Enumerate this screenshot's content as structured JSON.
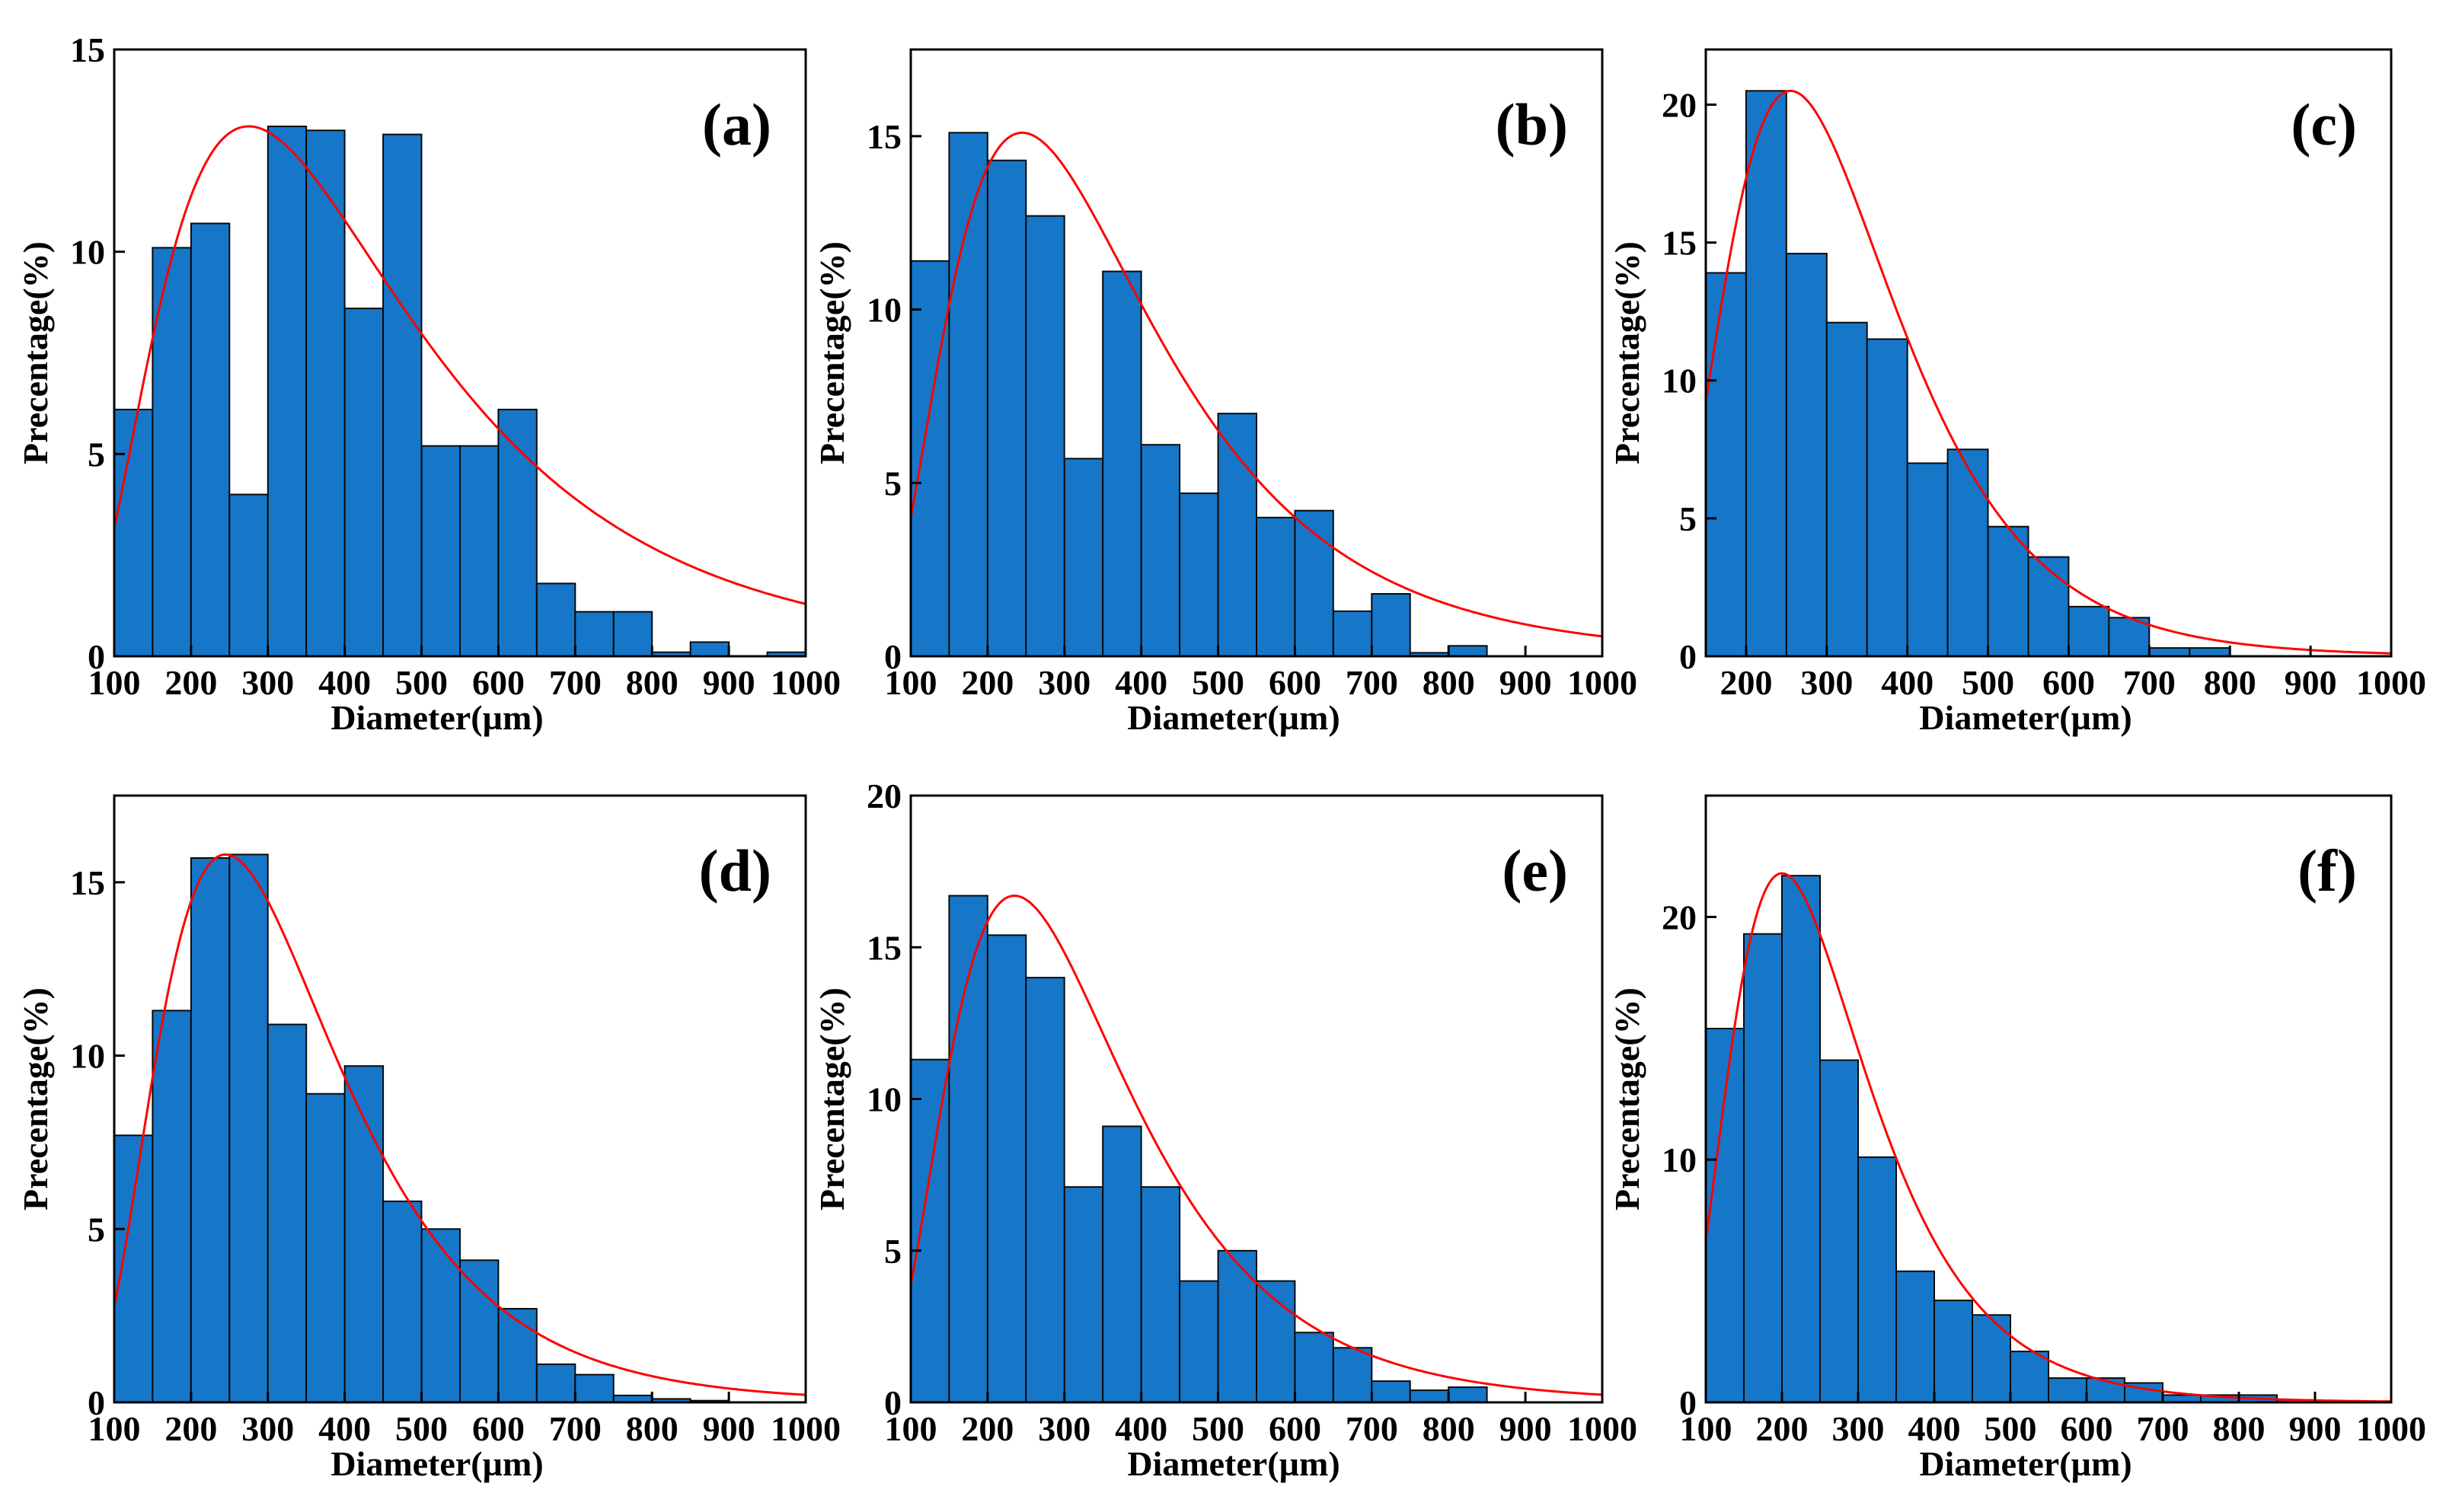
{
  "colors": {
    "bar_fill": "#1677c9",
    "bar_stroke": "#0a0a0a",
    "fit_line": "#ff0000",
    "axis": "#000000"
  },
  "chart_data": [
    {
      "type": "bar",
      "panel_label": "(a)",
      "xlabel": "Diameter(µm)",
      "ylabel": "Precentage(%)",
      "xlim": [
        100,
        1000
      ],
      "ylim": [
        0,
        15
      ],
      "xticks": [
        100,
        200,
        300,
        400,
        500,
        600,
        700,
        800,
        900,
        1000
      ],
      "xtick_labels": [
        "100",
        "200",
        "300",
        "400",
        "500",
        "600",
        "700",
        "800",
        "900",
        "1000"
      ],
      "yticks": [
        0,
        5,
        10,
        15
      ],
      "ytick_labels": [
        "0",
        "5",
        "10",
        "15"
      ],
      "bin_width": 50,
      "bin_starts": [
        100,
        150,
        200,
        250,
        300,
        350,
        400,
        450,
        500,
        550,
        600,
        650,
        700,
        750,
        800,
        850,
        900,
        950
      ],
      "values": [
        6.1,
        10.1,
        10.7,
        4.0,
        13.1,
        13.0,
        8.6,
        12.9,
        5.2,
        5.2,
        6.1,
        1.8,
        1.1,
        1.1,
        0.1,
        0.35,
        0.0,
        0.1
      ],
      "fit": {
        "type": "lognormal",
        "x_mode": 275,
        "peak": 13.1,
        "sigma": 0.6
      }
    },
    {
      "type": "bar",
      "panel_label": "(b)",
      "xlabel": "Diameter(µm)",
      "ylabel": "Precentage(%)",
      "xlim": [
        100,
        1000
      ],
      "ylim": [
        0,
        17.5
      ],
      "xticks": [
        100,
        200,
        300,
        400,
        500,
        600,
        700,
        800,
        900,
        1000
      ],
      "xtick_labels": [
        "100",
        "200",
        "300",
        "400",
        "500",
        "600",
        "700",
        "800",
        "900",
        "1000"
      ],
      "yticks": [
        0,
        5,
        10,
        15
      ],
      "ytick_labels": [
        "0",
        "5",
        "10",
        "15"
      ],
      "bin_width": 50,
      "bin_starts": [
        100,
        150,
        200,
        250,
        300,
        350,
        400,
        450,
        500,
        550,
        600,
        650,
        700,
        750,
        800,
        850,
        900,
        950
      ],
      "values": [
        11.4,
        15.1,
        14.3,
        12.7,
        5.7,
        11.1,
        6.1,
        4.7,
        7.0,
        4.0,
        4.2,
        1.3,
        1.8,
        0.1,
        0.3,
        0.0,
        0.0,
        0.0
      ],
      "fit": {
        "type": "lognormal",
        "x_mode": 245,
        "peak": 15.1,
        "sigma": 0.55
      }
    },
    {
      "type": "bar",
      "panel_label": "(c)",
      "xlabel": "Diameter(µm)",
      "ylabel": "Precentage(%)",
      "xlim": [
        150,
        1000
      ],
      "ylim": [
        0,
        22
      ],
      "xticks": [
        200,
        300,
        400,
        500,
        600,
        700,
        800,
        900,
        1000
      ],
      "xtick_labels": [
        "200",
        "300",
        "400",
        "500",
        "600",
        "700",
        "800",
        "900",
        "1000"
      ],
      "yticks": [
        0,
        5,
        10,
        15,
        20
      ],
      "ytick_labels": [
        "0",
        "5",
        "10",
        "15",
        "20"
      ],
      "bin_width": 50,
      "bin_starts": [
        150,
        200,
        250,
        300,
        350,
        400,
        450,
        500,
        550,
        600,
        650,
        700,
        750,
        800,
        850,
        900,
        950
      ],
      "values": [
        13.9,
        20.5,
        14.6,
        12.1,
        11.5,
        7.0,
        7.5,
        4.7,
        3.6,
        1.8,
        1.4,
        0.3,
        0.3,
        0.0,
        0.0,
        0.0,
        0.0
      ],
      "fit": {
        "type": "lognormal",
        "x_mode": 255,
        "peak": 20.5,
        "sigma": 0.42
      }
    },
    {
      "type": "bar",
      "panel_label": "(d)",
      "xlabel": "Diameter(µm)",
      "ylabel": "Precentage(%)",
      "xlim": [
        100,
        1000
      ],
      "ylim": [
        0,
        17.5
      ],
      "xticks": [
        100,
        200,
        300,
        400,
        500,
        600,
        700,
        800,
        900,
        1000
      ],
      "xtick_labels": [
        "100",
        "200",
        "300",
        "400",
        "500",
        "600",
        "700",
        "800",
        "900",
        "1000"
      ],
      "yticks": [
        0,
        5,
        10,
        15
      ],
      "ytick_labels": [
        "0",
        "5",
        "10",
        "15"
      ],
      "bin_width": 50,
      "bin_starts": [
        100,
        150,
        200,
        250,
        300,
        350,
        400,
        450,
        500,
        550,
        600,
        650,
        700,
        750,
        800,
        850,
        900,
        950
      ],
      "values": [
        7.7,
        11.3,
        15.7,
        15.8,
        10.9,
        8.9,
        9.7,
        5.8,
        5.0,
        4.1,
        2.7,
        1.1,
        0.8,
        0.2,
        0.1,
        0.05,
        0.0,
        0.0
      ],
      "fit": {
        "type": "lognormal",
        "x_mode": 245,
        "peak": 15.8,
        "sigma": 0.48
      }
    },
    {
      "type": "bar",
      "panel_label": "(e)",
      "xlabel": "Diameter(µm)",
      "ylabel": "Precentage(%)",
      "xlim": [
        100,
        1000
      ],
      "ylim": [
        0,
        20
      ],
      "xticks": [
        100,
        200,
        300,
        400,
        500,
        600,
        700,
        800,
        900,
        1000
      ],
      "xtick_labels": [
        "100",
        "200",
        "300",
        "400",
        "500",
        "600",
        "700",
        "800",
        "900",
        "1000"
      ],
      "yticks": [
        0,
        5,
        10,
        15,
        20
      ],
      "ytick_labels": [
        "0",
        "5",
        "10",
        "15",
        "20"
      ],
      "bin_width": 50,
      "bin_starts": [
        100,
        150,
        200,
        250,
        300,
        350,
        400,
        450,
        500,
        550,
        600,
        650,
        700,
        750,
        800,
        850,
        900,
        950
      ],
      "values": [
        11.3,
        16.7,
        15.4,
        14.0,
        7.1,
        9.1,
        7.1,
        4.0,
        5.0,
        4.0,
        2.3,
        1.8,
        0.7,
        0.4,
        0.5,
        0.0,
        0.0,
        0.0
      ],
      "fit": {
        "type": "lognormal",
        "x_mode": 235,
        "peak": 16.7,
        "sigma": 0.5
      }
    },
    {
      "type": "bar",
      "panel_label": "(f)",
      "xlabel": "Diameter(µm)",
      "ylabel": "Precentage(%)",
      "xlim": [
        100,
        1000
      ],
      "ylim": [
        0,
        25
      ],
      "xticks": [
        100,
        200,
        300,
        400,
        500,
        600,
        700,
        800,
        900,
        1000
      ],
      "xtick_labels": [
        "100",
        "200",
        "300",
        "400",
        "500",
        "600",
        "700",
        "800",
        "900",
        "1000"
      ],
      "yticks": [
        0,
        10,
        20
      ],
      "ytick_labels": [
        "0",
        "10",
        "20"
      ],
      "bin_width": 50,
      "bin_starts": [
        100,
        150,
        200,
        250,
        300,
        350,
        400,
        450,
        500,
        550,
        600,
        650,
        700,
        750,
        800,
        850,
        900,
        950
      ],
      "values": [
        15.4,
        19.3,
        21.7,
        14.1,
        10.1,
        5.4,
        4.2,
        3.6,
        2.1,
        1.0,
        1.0,
        0.8,
        0.3,
        0.3,
        0.3,
        0.1,
        0.0,
        0.0
      ],
      "fit": {
        "type": "lognormal",
        "x_mode": 200,
        "peak": 21.8,
        "sigma": 0.45
      }
    }
  ]
}
